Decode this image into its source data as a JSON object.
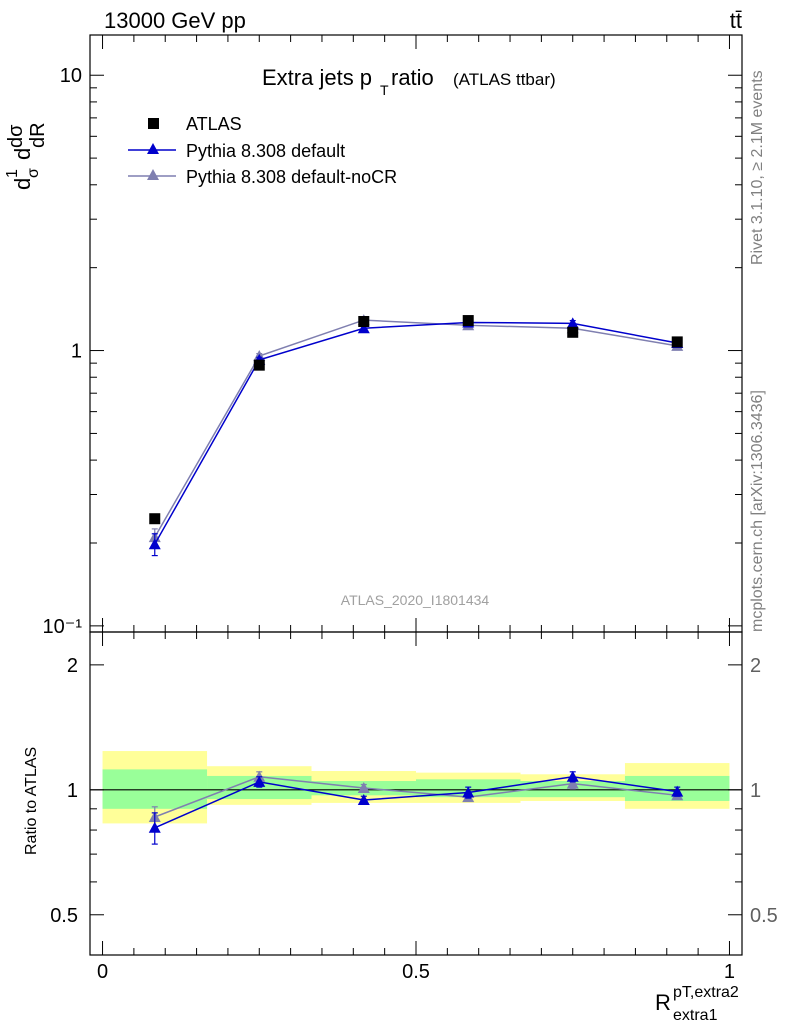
{
  "header": {
    "left": "13000 GeV pp",
    "right": "tt̄"
  },
  "side_labels": {
    "rivet": "Rivet 3.1.10, ≥ 2.1M events",
    "mcplots": "mcplots.cern.ch [arXiv:1306.3436]"
  },
  "chart_data": {
    "type": "scatter",
    "title_main": "Extra jets p",
    "title_sub": "T",
    "title_rest": " ratio",
    "title_paren": "(ATLAS ttbar)",
    "analysis_label": "ATLAS_2020_I1801434",
    "ylabel_main": "dσ",
    "xlabel": "R",
    "xlabel_sup": "pT,extra2",
    "xlabel_sub": "extra1",
    "ratio_ylabel": "Ratio to ATLAS",
    "xlim": [
      -0.02,
      1.02
    ],
    "ylim": [
      0.095,
      14
    ],
    "yscale": "log",
    "ratio_ylim": [
      0.4,
      2.4
    ],
    "ratio_yscale": "log",
    "x_ticks": [
      "0",
      "0.5",
      "1"
    ],
    "y_ticks": [
      "10",
      "1",
      "10⁻¹"
    ],
    "ratio_y_ticks": [
      "2",
      "1",
      "0.5"
    ],
    "legend_position": "top-left",
    "x": [
      0.0833,
      0.25,
      0.4167,
      0.5833,
      0.75,
      0.9167
    ],
    "bin_edges": [
      0.0,
      0.1667,
      0.3333,
      0.5,
      0.6667,
      0.8333,
      1.0
    ],
    "series": [
      {
        "name": "ATLAS",
        "color": "#000000",
        "marker": "square",
        "values": [
          0.245,
          0.885,
          1.275,
          1.285,
          1.165,
          1.075
        ]
      },
      {
        "name": "Pythia 8.308 default",
        "color": "#0000cc",
        "marker": "triangle",
        "values": [
          0.198,
          0.925,
          1.205,
          1.265,
          1.255,
          1.065
        ],
        "errors": [
          0.018,
          0.02,
          0.02,
          0.02,
          0.03,
          0.02
        ]
      },
      {
        "name": "Pythia 8.308 default-noCR",
        "color": "#7f7fb0",
        "marker": "triangle",
        "values": [
          0.21,
          0.955,
          1.29,
          1.235,
          1.205,
          1.04
        ],
        "errors": [
          0.015,
          0.02,
          0.02,
          0.02,
          0.03,
          0.02
        ]
      }
    ],
    "ratio": {
      "band_green": [
        [
          0.9,
          1.12
        ],
        [
          0.95,
          1.08
        ],
        [
          0.97,
          1.05
        ],
        [
          0.96,
          1.06
        ],
        [
          0.96,
          1.05
        ],
        [
          0.94,
          1.08
        ]
      ],
      "band_yellow": [
        [
          0.83,
          1.24
        ],
        [
          0.92,
          1.14
        ],
        [
          0.93,
          1.11
        ],
        [
          0.93,
          1.1
        ],
        [
          0.94,
          1.09
        ],
        [
          0.9,
          1.16
        ]
      ],
      "default": [
        0.81,
        1.045,
        0.945,
        0.985,
        1.075,
        0.99
      ],
      "default_err": [
        0.07,
        0.03,
        0.02,
        0.03,
        0.03,
        0.025
      ],
      "noCR": [
        0.86,
        1.075,
        1.01,
        0.96,
        1.035,
        0.97
      ],
      "noCR_err": [
        0.05,
        0.03,
        0.02,
        0.02,
        0.03,
        0.02
      ]
    }
  }
}
